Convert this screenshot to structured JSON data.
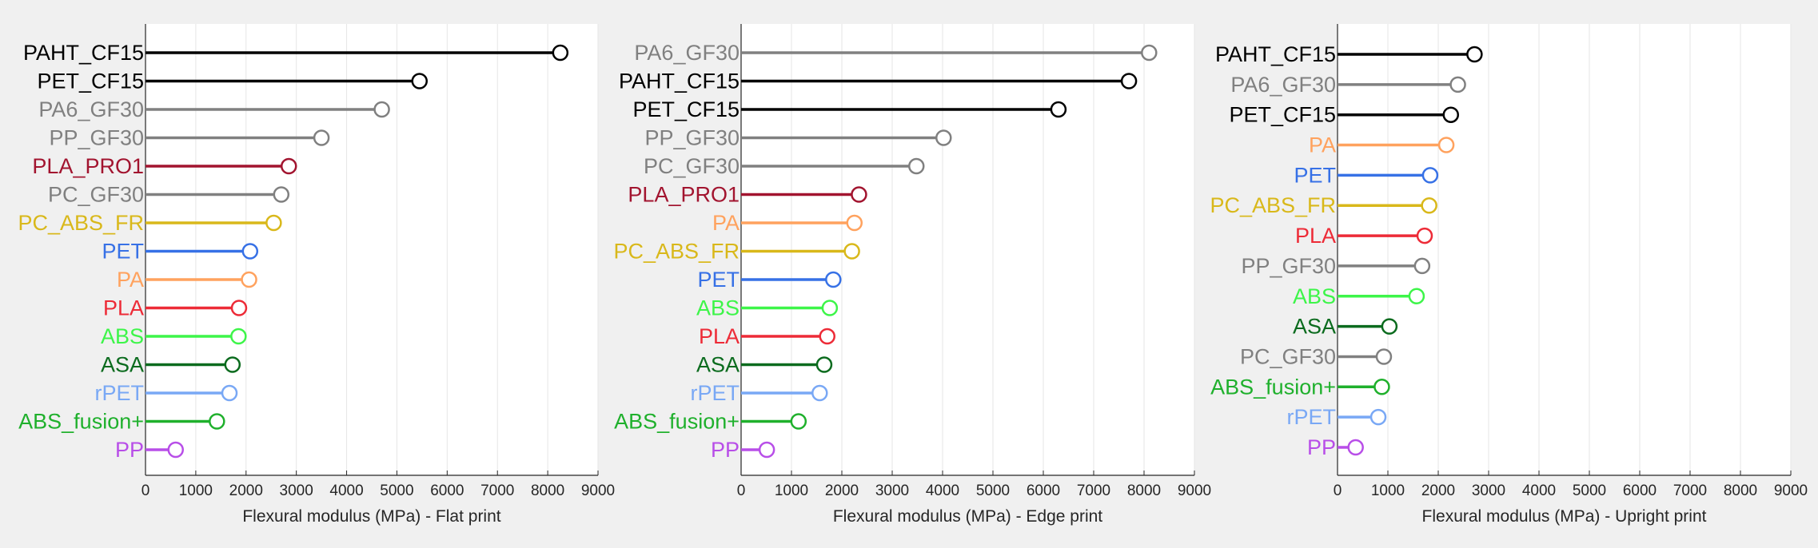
{
  "chart_data": [
    {
      "type": "lollipop",
      "xlabel": "Flexural modulus (MPa) - Flat print",
      "xlim": [
        0,
        9000
      ],
      "xticks": [
        0,
        1000,
        2000,
        3000,
        4000,
        5000,
        6000,
        7000,
        8000,
        9000
      ],
      "grid": "vertical",
      "categories": [
        "PAHT_CF15",
        "PET_CF15",
        "PA6_GF30",
        "PP_GF30",
        "PLA_PRO1",
        "PC_GF30",
        "PC_ABS_FR",
        "PET",
        "PA",
        "PLA",
        "ABS",
        "ASA",
        "rPET",
        "ABS_fusion+",
        "PP"
      ],
      "values": [
        8250,
        5450,
        4700,
        3500,
        2850,
        2700,
        2550,
        2080,
        2060,
        1860,
        1850,
        1730,
        1670,
        1420,
        600
      ],
      "colors": [
        "#000000",
        "#000000",
        "#808080",
        "#808080",
        "#a2142f",
        "#808080",
        "#d9b81a",
        "#3771e6",
        "#ffa25e",
        "#ed2b37",
        "#3df549",
        "#0b6b1e",
        "#79a8f5",
        "#1fb02c",
        "#b84ee8"
      ]
    },
    {
      "type": "lollipop",
      "xlabel": "Flexural modulus (MPa) - Edge print",
      "xlim": [
        0,
        9000
      ],
      "xticks": [
        0,
        1000,
        2000,
        3000,
        4000,
        5000,
        6000,
        7000,
        8000,
        9000
      ],
      "grid": "vertical",
      "categories": [
        "PA6_GF30",
        "PAHT_CF15",
        "PET_CF15",
        "PP_GF30",
        "PC_GF30",
        "PLA_PRO1",
        "PA",
        "PC_ABS_FR",
        "PET",
        "ABS",
        "PLA",
        "ASA",
        "rPET",
        "ABS_fusion+",
        "PP"
      ],
      "values": [
        8100,
        7700,
        6300,
        4020,
        3480,
        2340,
        2250,
        2200,
        1830,
        1760,
        1710,
        1650,
        1560,
        1140,
        510
      ],
      "colors": [
        "#808080",
        "#000000",
        "#000000",
        "#808080",
        "#808080",
        "#a2142f",
        "#ffa25e",
        "#d9b81a",
        "#3771e6",
        "#3df549",
        "#ed2b37",
        "#0b6b1e",
        "#79a8f5",
        "#1fb02c",
        "#b84ee8"
      ]
    },
    {
      "type": "lollipop",
      "xlabel": "Flexural modulus (MPa) - Upright print",
      "xlim": [
        0,
        9000
      ],
      "xticks": [
        0,
        1000,
        2000,
        3000,
        4000,
        5000,
        6000,
        7000,
        8000,
        9000
      ],
      "grid": "vertical",
      "categories": [
        "PAHT_CF15",
        "PA6_GF30",
        "PET_CF15",
        "PA",
        "PET",
        "PC_ABS_FR",
        "PLA",
        "PP_GF30",
        "ABS",
        "ASA",
        "PC_GF30",
        "ABS_fusion+",
        "rPET",
        "PP"
      ],
      "values": [
        2720,
        2390,
        2250,
        2160,
        1840,
        1820,
        1730,
        1680,
        1570,
        1030,
        920,
        880,
        810,
        360
      ],
      "colors": [
        "#000000",
        "#808080",
        "#000000",
        "#ffa25e",
        "#3771e6",
        "#d9b81a",
        "#ed2b37",
        "#808080",
        "#3df549",
        "#0b6b1e",
        "#808080",
        "#1fb02c",
        "#79a8f5",
        "#b84ee8"
      ]
    }
  ]
}
